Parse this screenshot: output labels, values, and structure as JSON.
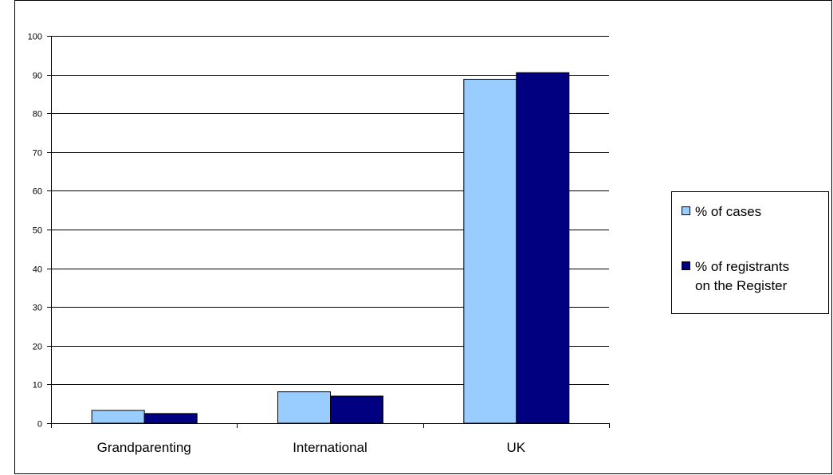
{
  "chart_data": {
    "type": "bar",
    "categories": [
      "Grandparenting",
      "International",
      "UK"
    ],
    "series": [
      {
        "name": "% of cases",
        "values": [
          3.3,
          8.1,
          88.8
        ],
        "color": "#99ccff"
      },
      {
        "name": "% of registrants on the Register",
        "values": [
          2.5,
          7.0,
          90.5
        ],
        "color": "#000080"
      }
    ],
    "ylim": [
      0,
      100
    ],
    "yticks": [
      0,
      10,
      20,
      30,
      40,
      50,
      60,
      70,
      80,
      90,
      100
    ],
    "legend_lines": [
      [
        "% of cases"
      ],
      [
        "% of registrants",
        "on the Register"
      ]
    ],
    "grid": true,
    "legend_position": "right"
  }
}
